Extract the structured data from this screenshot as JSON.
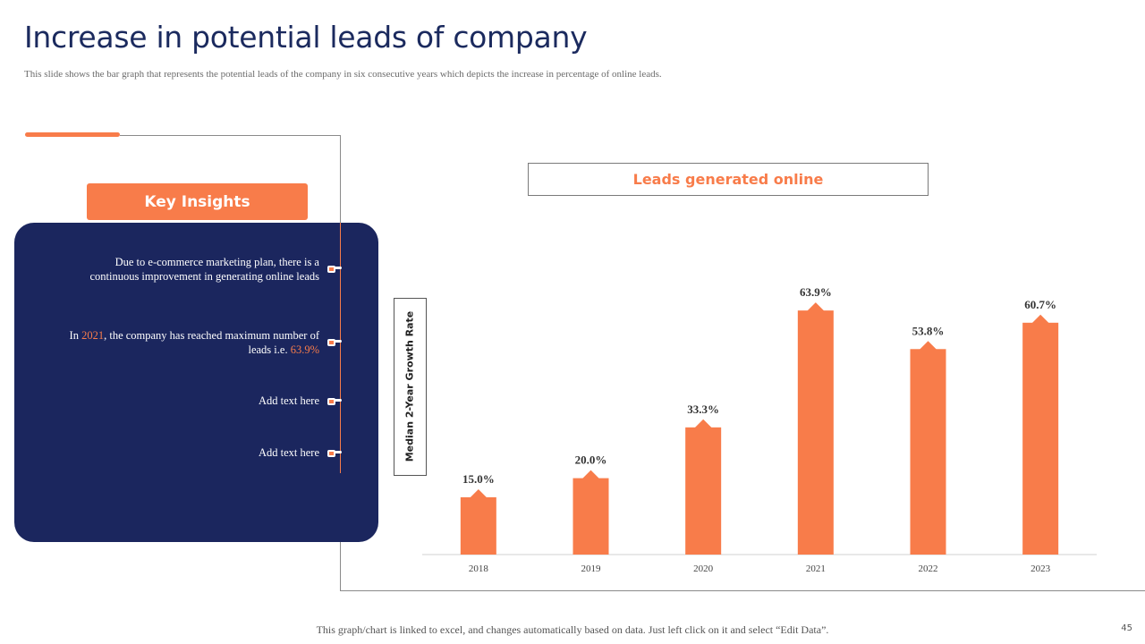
{
  "slide": {
    "title": "Increase in potential leads of company",
    "subtitle": "This slide shows the bar graph that represents the potential leads of the company in six consecutive years which depicts the increase  in percentage of online leads.",
    "footer": "This graph/chart is linked to excel,  and changes automatically  based on data. Just left  click  on it and select “Edit Data”.",
    "page_number": "45"
  },
  "insights": {
    "heading": "Key Insights",
    "items": [
      {
        "line1": "Due to e-commerce  marketing plan, there is a",
        "line2": "continuous improvement  in generating online leads"
      },
      {
        "pre": "In ",
        "year": "2021",
        "mid": ", the company has reached maximum  number of",
        "line2_pre": "leads i.e. ",
        "value": "63.9%"
      },
      {
        "text": "Add text here"
      },
      {
        "text": "Add text here"
      }
    ]
  },
  "colors": {
    "accent": "#f87c4a",
    "navy": "#1b265e",
    "title": "#1b2a5e"
  },
  "chart_data": {
    "type": "bar",
    "title": "Leads generated online",
    "ylabel": "Median 2-Year Growth Rate",
    "xlabel": "",
    "categories": [
      "2018",
      "2019",
      "2020",
      "2021",
      "2022",
      "2023"
    ],
    "values": [
      15.0,
      20.0,
      33.3,
      63.9,
      53.8,
      60.7
    ],
    "labels": [
      "15.0%",
      "20.0%",
      "33.3%",
      "63.9%",
      "53.8%",
      "60.7%"
    ],
    "ylim": [
      0,
      70
    ],
    "grid": false,
    "legend": "none"
  }
}
